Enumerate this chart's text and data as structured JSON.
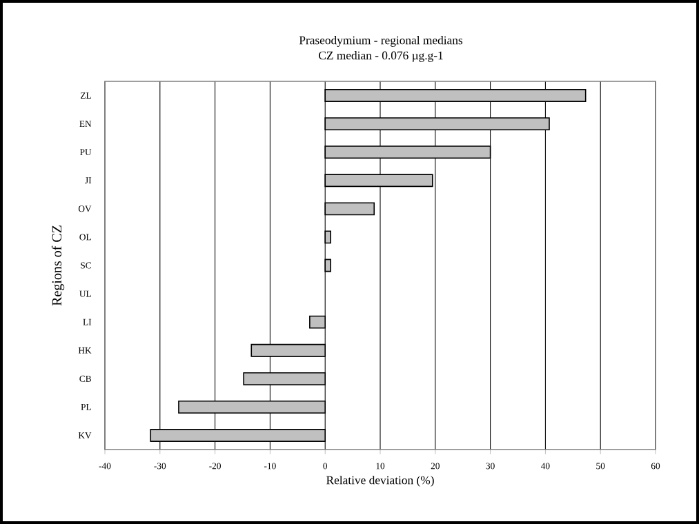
{
  "chart_data": {
    "type": "bar",
    "orientation": "horizontal",
    "title": "Praseodymium - regional medians",
    "subtitle": "CZ median  - 0.076 µg.g-1",
    "xlabel": "Relative deviation (%)",
    "ylabel": "Regions of CZ",
    "categories": [
      "ZL",
      "EN",
      "PU",
      "JI",
      "OV",
      "OL",
      "SC",
      "UL",
      "LI",
      "HK",
      "CB",
      "PL",
      "KV"
    ],
    "values": [
      47.3,
      40.7,
      30.0,
      19.5,
      8.9,
      1.0,
      1.0,
      0,
      -2.8,
      -13.4,
      -14.8,
      -26.6,
      -31.7
    ],
    "color": "#c0c0c0",
    "xlim": [
      -40,
      60
    ],
    "xticks": [
      -40,
      -30,
      -20,
      -10,
      0,
      10,
      20,
      30,
      40,
      50,
      60
    ],
    "grid": "x"
  }
}
